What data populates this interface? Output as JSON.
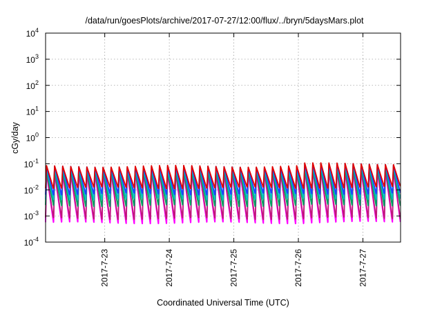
{
  "chart_data": {
    "type": "line",
    "title": "/data/run/goesPlots/archive/2017-07-27/12:00/flux/../bryn/5daysMars.plot",
    "xlabel": "Coordinated Universal Time (UTC)",
    "ylabel": "cGy/day",
    "y_scale": "log",
    "ylim": [
      0.0001,
      10000
    ],
    "x_range": [
      "2017-07-22 02:00",
      "2017-07-27 14:00"
    ],
    "grid": true,
    "legend": "none",
    "y_ticks": [
      {
        "base": "10",
        "exp": "-4"
      },
      {
        "base": "10",
        "exp": "-3"
      },
      {
        "base": "10",
        "exp": "-2"
      },
      {
        "base": "10",
        "exp": "-1"
      },
      {
        "base": "10",
        "exp": "0"
      },
      {
        "base": "10",
        "exp": "1"
      },
      {
        "base": "10",
        "exp": "2"
      },
      {
        "base": "10",
        "exp": "3"
      },
      {
        "base": "10",
        "exp": "4"
      }
    ],
    "x_ticks": [
      "2017-7-23",
      "2017-7-24",
      "2017-7-25",
      "2017-7-26",
      "2017-7-27"
    ],
    "cycle_hours": 3,
    "series": [
      {
        "color": "#ff00ff",
        "peak": 0.045,
        "trough": 0.00055
      },
      {
        "color": "#c0187a",
        "peak": 0.05,
        "trough": 0.0008
      },
      {
        "color": "#00a060",
        "peak": 0.055,
        "trough": 0.0025
      },
      {
        "color": "#00c0c0",
        "peak": 0.065,
        "trough": 0.0045
      },
      {
        "color": "#2040ff",
        "peak": 0.075,
        "trough": 0.007
      },
      {
        "color": "#e00000",
        "peak": 0.08,
        "trough": 0.012
      }
    ],
    "late_period": {
      "start": "2017-07-26 00:00",
      "factor": 1.25
    }
  }
}
